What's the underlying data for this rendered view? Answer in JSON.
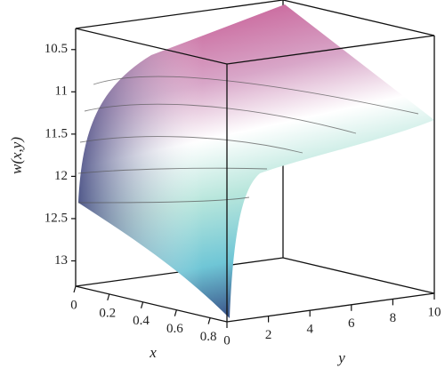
{
  "chart_data": {
    "type": "surface",
    "xlabel": "x",
    "ylabel": "y",
    "zlabel": "w(x,y)",
    "xlim": [
      0,
      0.9
    ],
    "xticks": [
      0,
      0.2,
      0.4,
      0.6,
      0.8
    ],
    "ylim": [
      0,
      10
    ],
    "yticks": [
      0,
      2,
      4,
      6,
      8,
      10
    ],
    "zlim": [
      10.25,
      13.3
    ],
    "zticks": [
      10.5,
      11,
      11.5,
      12,
      12.5,
      13
    ]
  }
}
